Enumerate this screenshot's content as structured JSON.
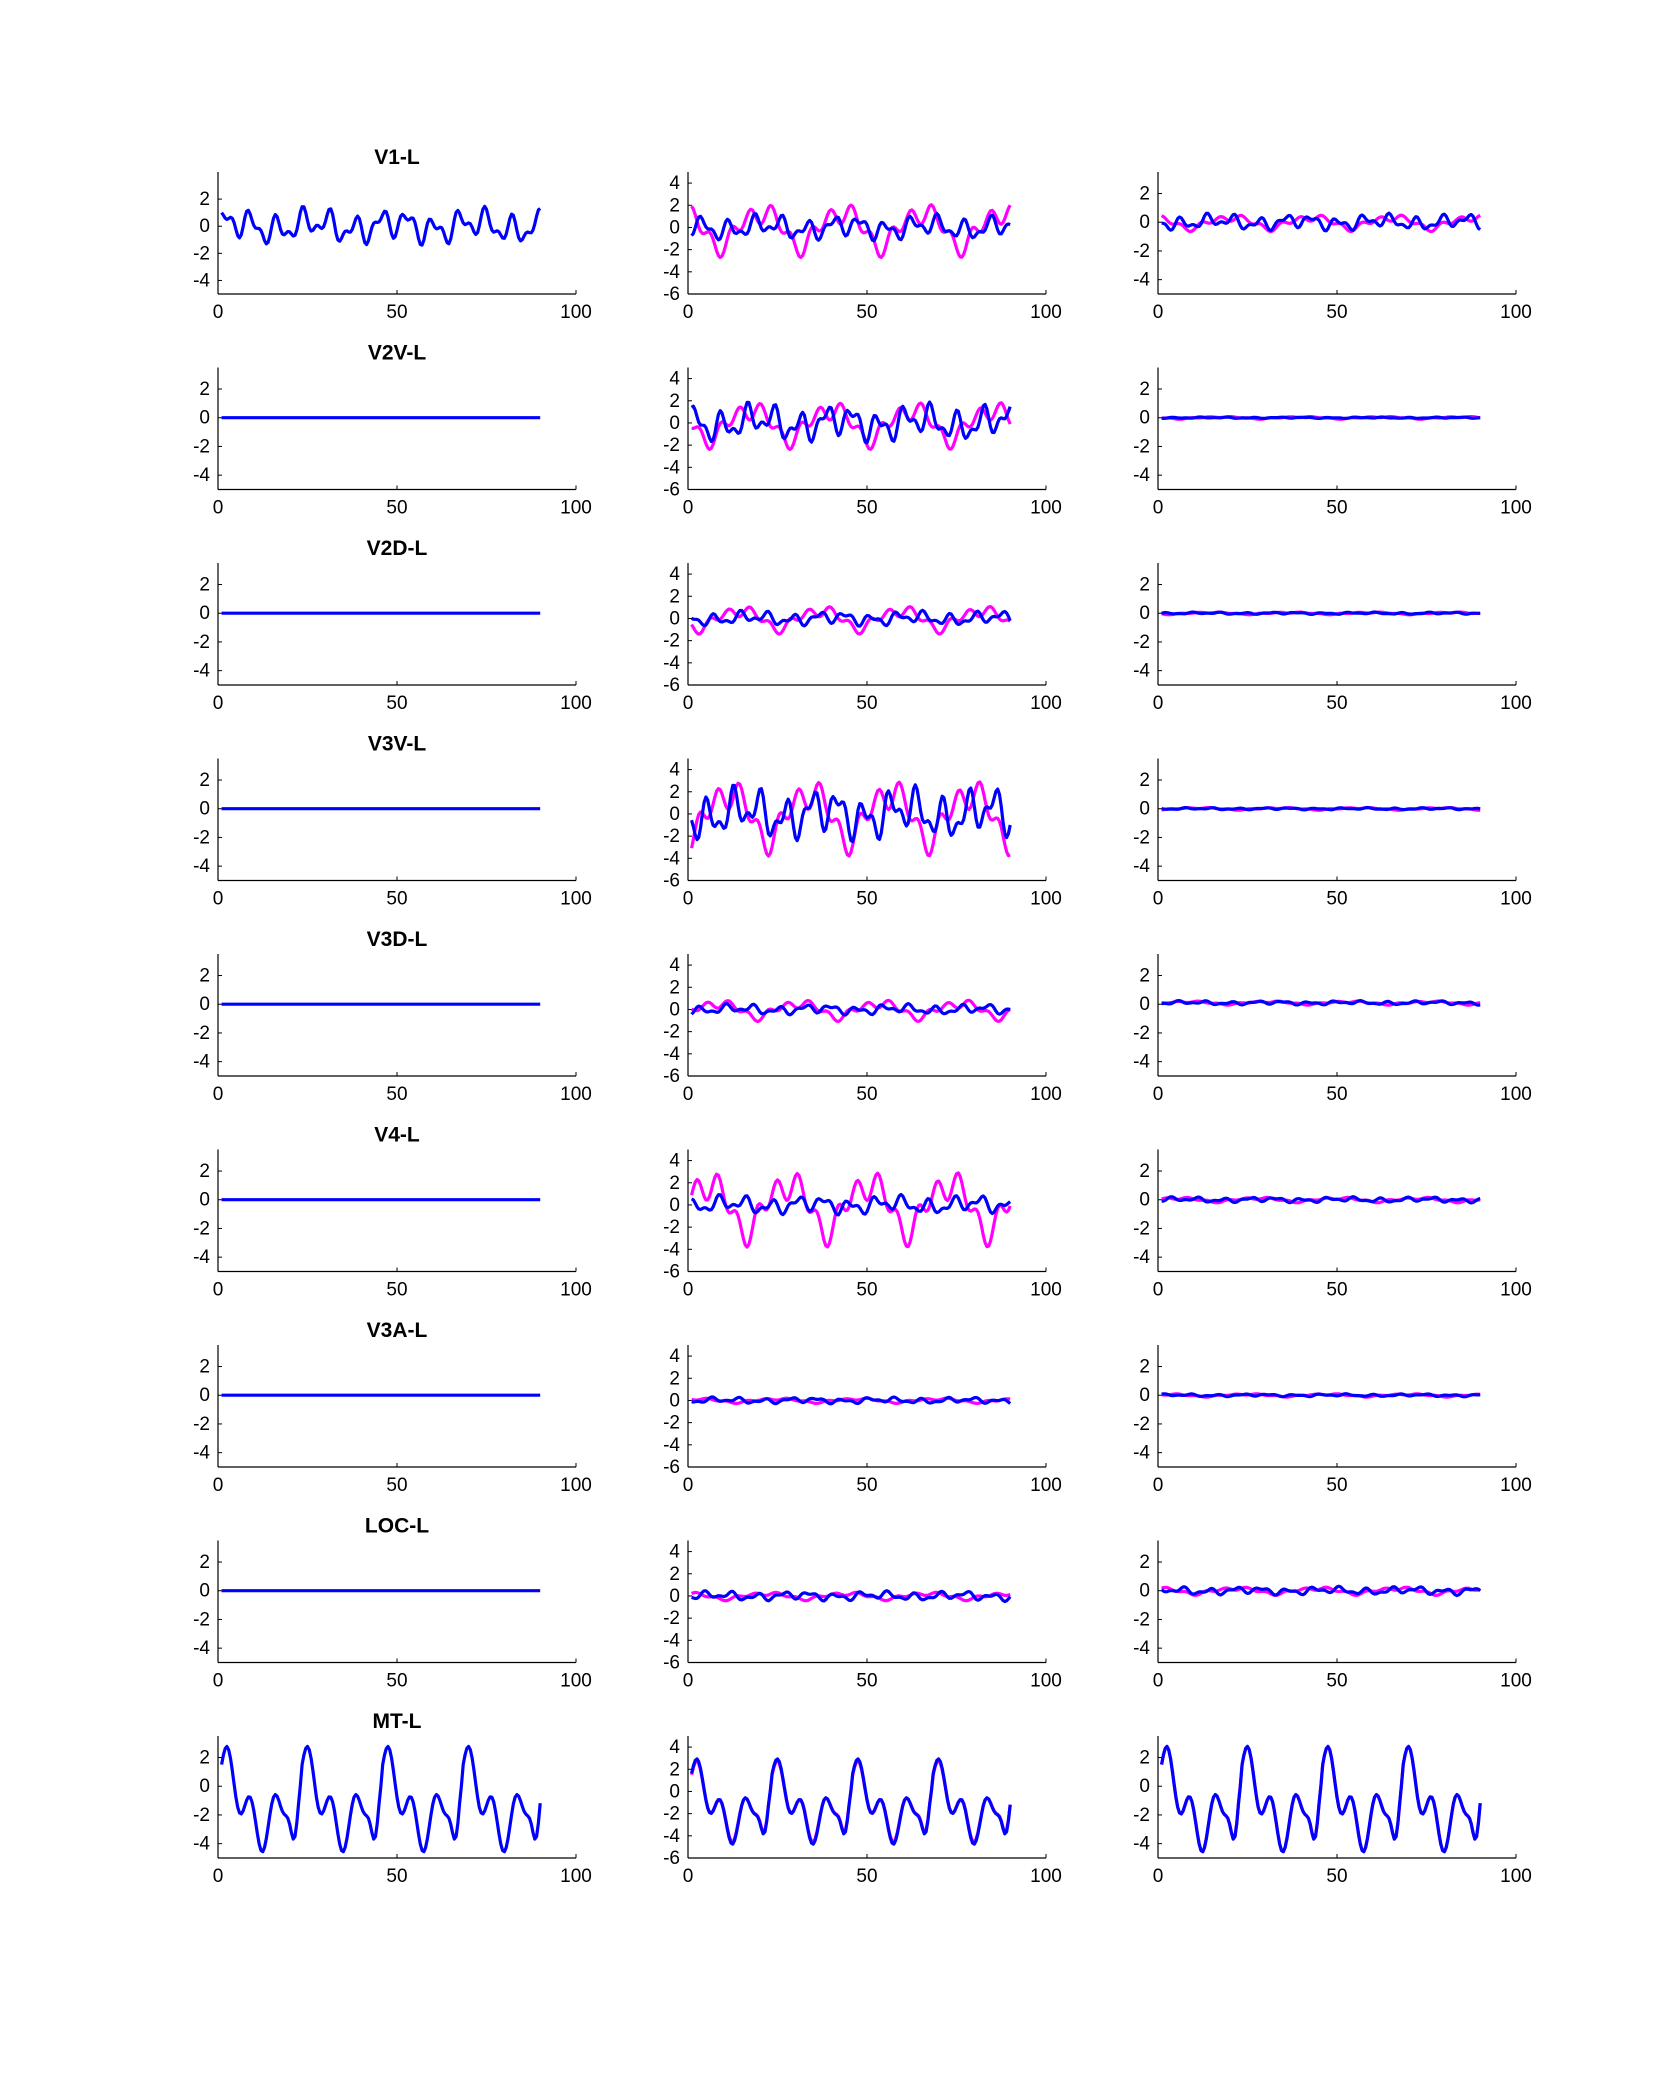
{
  "colors": {
    "observed": "#0000ff",
    "model": "#ff00ff",
    "axis": "#000000",
    "background": "#ffffff"
  },
  "chart_data": {
    "type": "line",
    "grid": false,
    "xlim": [
      0,
      100
    ],
    "xticks": [
      0,
      50,
      100
    ],
    "x_samples": [
      1,
      90
    ],
    "rows": [
      {
        "title": "V1-L",
        "panels": [
          {
            "ylim": [
              -5,
              4
            ],
            "yticks": [
              -4,
              -2,
              0,
              2
            ],
            "series": [
              {
                "color": "blue",
                "scale": 1.4,
                "offset": 0
              }
            ]
          },
          {
            "ylim": [
              -6,
              5
            ],
            "yticks": [
              -6,
              -4,
              -2,
              0,
              2,
              4
            ],
            "series": [
              {
                "color": "magenta",
                "scale": 2.5,
                "offset": 0
              },
              {
                "color": "blue",
                "scale": 1.2,
                "offset": 0
              }
            ]
          },
          {
            "ylim": [
              -5,
              3.5
            ],
            "yticks": [
              -4,
              -2,
              0,
              2
            ],
            "series": [
              {
                "color": "magenta",
                "scale": 0.6,
                "offset": 0
              },
              {
                "color": "blue",
                "scale": 0.6,
                "offset": 0
              }
            ]
          }
        ]
      },
      {
        "title": "V2V-L",
        "panels": [
          {
            "ylim": [
              -5,
              3.5
            ],
            "yticks": [
              -4,
              -2,
              0,
              2
            ],
            "series": [
              {
                "color": "blue",
                "scale": 0,
                "offset": 0
              }
            ]
          },
          {
            "ylim": [
              -6,
              5
            ],
            "yticks": [
              -6,
              -4,
              -2,
              0,
              2,
              4
            ],
            "series": [
              {
                "color": "magenta",
                "scale": 2.2,
                "offset": 0
              },
              {
                "color": "blue",
                "scale": 1.8,
                "offset": 0
              }
            ]
          },
          {
            "ylim": [
              -5,
              3.5
            ],
            "yticks": [
              -4,
              -2,
              0,
              2
            ],
            "series": [
              {
                "color": "magenta",
                "scale": 0.1,
                "offset": 0
              },
              {
                "color": "blue",
                "scale": 0.05,
                "offset": 0
              }
            ]
          }
        ]
      },
      {
        "title": "V2D-L",
        "panels": [
          {
            "ylim": [
              -5,
              3.5
            ],
            "yticks": [
              -4,
              -2,
              0,
              2
            ],
            "series": [
              {
                "color": "blue",
                "scale": 0,
                "offset": 0
              }
            ]
          },
          {
            "ylim": [
              -6,
              5
            ],
            "yticks": [
              -6,
              -4,
              -2,
              0,
              2,
              4
            ],
            "series": [
              {
                "color": "magenta",
                "scale": 1.3,
                "offset": 0
              },
              {
                "color": "blue",
                "scale": 0.7,
                "offset": 0
              }
            ]
          },
          {
            "ylim": [
              -5,
              3.5
            ],
            "yticks": [
              -4,
              -2,
              0,
              2
            ],
            "series": [
              {
                "color": "magenta",
                "scale": 0.1,
                "offset": 0
              },
              {
                "color": "blue",
                "scale": 0.08,
                "offset": 0
              }
            ]
          }
        ]
      },
      {
        "title": "V3V-L",
        "panels": [
          {
            "ylim": [
              -5,
              3.5
            ],
            "yticks": [
              -4,
              -2,
              0,
              2
            ],
            "series": [
              {
                "color": "blue",
                "scale": 0,
                "offset": 0
              }
            ]
          },
          {
            "ylim": [
              -6,
              5
            ],
            "yticks": [
              -6,
              -4,
              -2,
              0,
              2,
              4
            ],
            "series": [
              {
                "color": "magenta",
                "scale": 3.5,
                "offset": 0
              },
              {
                "color": "blue",
                "scale": 2.5,
                "offset": 0
              }
            ]
          },
          {
            "ylim": [
              -5,
              3.5
            ],
            "yticks": [
              -4,
              -2,
              0,
              2
            ],
            "series": [
              {
                "color": "magenta",
                "scale": 0.1,
                "offset": 0
              },
              {
                "color": "blue",
                "scale": 0.08,
                "offset": 0
              }
            ]
          }
        ]
      },
      {
        "title": "V3D-L",
        "panels": [
          {
            "ylim": [
              -5,
              3.5
            ],
            "yticks": [
              -4,
              -2,
              0,
              2
            ],
            "series": [
              {
                "color": "blue",
                "scale": 0,
                "offset": 0
              }
            ]
          },
          {
            "ylim": [
              -6,
              5
            ],
            "yticks": [
              -6,
              -4,
              -2,
              0,
              2,
              4
            ],
            "series": [
              {
                "color": "magenta",
                "scale": 1.0,
                "offset": 0
              },
              {
                "color": "blue",
                "scale": 0.5,
                "offset": 0
              }
            ]
          },
          {
            "ylim": [
              -5,
              3.5
            ],
            "yticks": [
              -4,
              -2,
              0,
              2
            ],
            "series": [
              {
                "color": "magenta",
                "scale": 0.15,
                "offset": 0.1
              },
              {
                "color": "blue",
                "scale": 0.15,
                "offset": 0.1
              }
            ]
          }
        ]
      },
      {
        "title": "V4-L",
        "panels": [
          {
            "ylim": [
              -5,
              3.5
            ],
            "yticks": [
              -4,
              -2,
              0,
              2
            ],
            "series": [
              {
                "color": "blue",
                "scale": 0,
                "offset": 0
              }
            ]
          },
          {
            "ylim": [
              -6,
              5
            ],
            "yticks": [
              -6,
              -4,
              -2,
              0,
              2,
              4
            ],
            "series": [
              {
                "color": "magenta",
                "scale": 3.5,
                "offset": 0
              },
              {
                "color": "blue",
                "scale": 0.9,
                "offset": 0
              }
            ]
          },
          {
            "ylim": [
              -5,
              3.5
            ],
            "yticks": [
              -4,
              -2,
              0,
              2
            ],
            "series": [
              {
                "color": "magenta",
                "scale": 0.2,
                "offset": 0
              },
              {
                "color": "blue",
                "scale": 0.2,
                "offset": 0
              }
            ]
          }
        ]
      },
      {
        "title": "V3A-L",
        "panels": [
          {
            "ylim": [
              -5,
              3.5
            ],
            "yticks": [
              -4,
              -2,
              0,
              2
            ],
            "series": [
              {
                "color": "blue",
                "scale": 0,
                "offset": 0
              }
            ]
          },
          {
            "ylim": [
              -6,
              5
            ],
            "yticks": [
              -6,
              -4,
              -2,
              0,
              2,
              4
            ],
            "series": [
              {
                "color": "magenta",
                "scale": 0.25,
                "offset": 0
              },
              {
                "color": "blue",
                "scale": 0.3,
                "offset": 0
              }
            ]
          },
          {
            "ylim": [
              -5,
              3.5
            ],
            "yticks": [
              -4,
              -2,
              0,
              2
            ],
            "series": [
              {
                "color": "magenta",
                "scale": 0.12,
                "offset": 0
              },
              {
                "color": "blue",
                "scale": 0.1,
                "offset": 0
              }
            ]
          }
        ]
      },
      {
        "title": "LOC-L",
        "panels": [
          {
            "ylim": [
              -5,
              3.5
            ],
            "yticks": [
              -4,
              -2,
              0,
              2
            ],
            "series": [
              {
                "color": "blue",
                "scale": 0,
                "offset": 0
              }
            ]
          },
          {
            "ylim": [
              -6,
              5
            ],
            "yticks": [
              -6,
              -4,
              -2,
              0,
              2,
              4
            ],
            "series": [
              {
                "color": "magenta",
                "scale": 0.4,
                "offset": 0
              },
              {
                "color": "blue",
                "scale": 0.45,
                "offset": 0
              }
            ]
          },
          {
            "ylim": [
              -5,
              3.5
            ],
            "yticks": [
              -4,
              -2,
              0,
              2
            ],
            "series": [
              {
                "color": "magenta",
                "scale": 0.3,
                "offset": 0
              },
              {
                "color": "blue",
                "scale": 0.3,
                "offset": 0
              }
            ]
          }
        ]
      },
      {
        "title": "MT-L",
        "panels": [
          {
            "ylim": [
              -5,
              3.5
            ],
            "yticks": [
              -4,
              -2,
              0,
              2
            ],
            "series": [
              {
                "color": "blue",
                "scale": 4.2,
                "offset": -0.8
              }
            ]
          },
          {
            "ylim": [
              -6,
              5
            ],
            "yticks": [
              -6,
              -4,
              -2,
              0,
              2,
              4
            ],
            "series": [
              {
                "color": "magenta",
                "scale": 4.2,
                "offset": -0.8
              },
              {
                "color": "blue",
                "scale": 4.4,
                "offset": -0.8
              }
            ]
          },
          {
            "ylim": [
              -5,
              3.5
            ],
            "yticks": [
              -4,
              -2,
              0,
              2
            ],
            "series": [
              {
                "color": "magenta",
                "scale": 4.2,
                "offset": -0.8
              },
              {
                "color": "blue",
                "scale": 4.2,
                "offset": -0.8
              }
            ]
          }
        ]
      }
    ]
  }
}
